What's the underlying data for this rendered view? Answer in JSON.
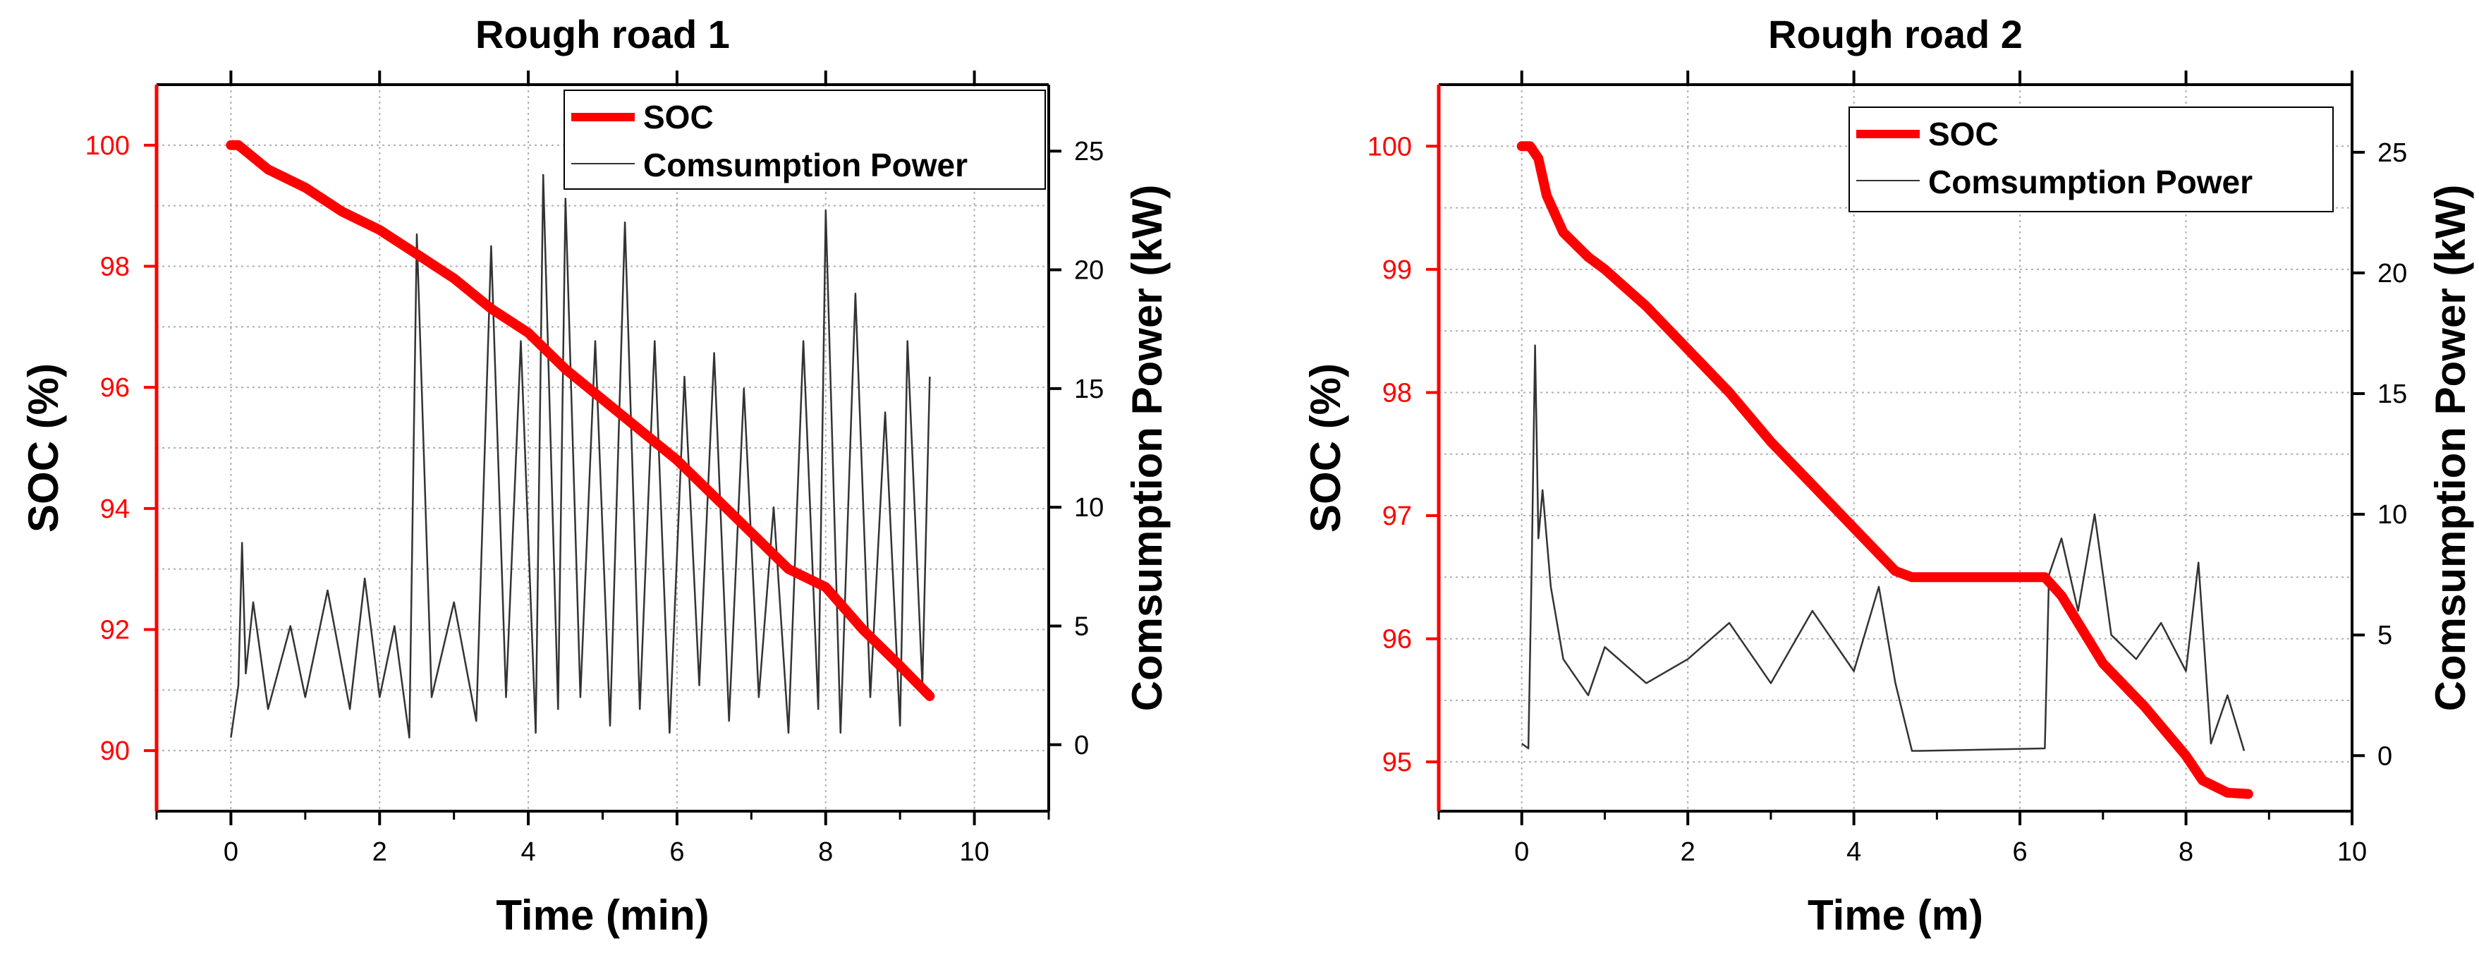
{
  "chart_data": [
    {
      "type": "line",
      "title": "Rough road 1",
      "xlabel": "Time (min)",
      "ylabel": "SOC (%)",
      "y2label": "Comsumption Power (kW)",
      "xlim": [
        -1,
        11
      ],
      "ylim": [
        89,
        101
      ],
      "y2lim": [
        -2.8,
        27.8
      ],
      "xticks": [
        0,
        2,
        4,
        6,
        8,
        10
      ],
      "yticks": [
        90,
        92,
        94,
        96,
        98,
        100
      ],
      "y2ticks": [
        0,
        5,
        10,
        15,
        20,
        25
      ],
      "grid": true,
      "legend": {
        "position": "top-right",
        "entries": [
          "SOC",
          "Comsumption Power"
        ]
      },
      "series": [
        {
          "name": "SOC",
          "axis": "left",
          "color": "#ff0000",
          "x": [
            0,
            0.1,
            0.5,
            1.0,
            1.5,
            2.0,
            2.5,
            3.0,
            3.5,
            4.0,
            4.5,
            5.0,
            5.5,
            6.0,
            6.5,
            7.0,
            7.5,
            8.0,
            8.5,
            9.0,
            9.4
          ],
          "y": [
            100.0,
            100.0,
            99.6,
            99.3,
            98.9,
            98.6,
            98.2,
            97.8,
            97.3,
            96.9,
            96.3,
            95.8,
            95.3,
            94.8,
            94.2,
            93.6,
            93.0,
            92.7,
            92.0,
            91.4,
            90.9
          ]
        },
        {
          "name": "Comsumption Power",
          "axis": "right",
          "color": "#333333",
          "x": [
            0.0,
            0.1,
            0.15,
            0.2,
            0.3,
            0.5,
            0.8,
            1.0,
            1.3,
            1.6,
            1.8,
            2.0,
            2.2,
            2.4,
            2.5,
            2.7,
            3.0,
            3.3,
            3.5,
            3.7,
            3.9,
            4.1,
            4.2,
            4.4,
            4.5,
            4.7,
            4.9,
            5.1,
            5.3,
            5.5,
            5.7,
            5.9,
            6.1,
            6.3,
            6.5,
            6.7,
            6.9,
            7.1,
            7.3,
            7.5,
            7.7,
            7.9,
            8.0,
            8.2,
            8.4,
            8.6,
            8.8,
            9.0,
            9.1,
            9.3,
            9.4
          ],
          "y": [
            0.3,
            2.5,
            8.5,
            3.0,
            6.0,
            1.5,
            5.0,
            2.0,
            6.5,
            1.5,
            7.0,
            2.0,
            5.0,
            0.3,
            21.5,
            2.0,
            6.0,
            1.0,
            21.0,
            2.0,
            17.0,
            0.5,
            24.0,
            1.5,
            23.0,
            2.0,
            17.0,
            0.8,
            22.0,
            1.5,
            17.0,
            0.5,
            15.5,
            2.5,
            16.5,
            1.0,
            15.0,
            2.0,
            10.0,
            0.5,
            17.0,
            1.5,
            22.5,
            0.5,
            19.0,
            2.0,
            14.0,
            0.8,
            17.0,
            2.5,
            15.5
          ]
        }
      ]
    },
    {
      "type": "line",
      "title": "Rough road 2",
      "xlabel": "Time (m)",
      "ylabel": "SOC (%)",
      "y2label": "Comsumption Power (kW)",
      "xlim": [
        -1,
        10
      ],
      "ylim": [
        94.6,
        100.5
      ],
      "y2lim": [
        -2.3,
        27.8
      ],
      "xticks": [
        0,
        2,
        4,
        6,
        8,
        10
      ],
      "yticks": [
        95,
        96,
        97,
        98,
        99,
        100
      ],
      "y2ticks": [
        0,
        5,
        10,
        15,
        20,
        25
      ],
      "grid": true,
      "legend": {
        "position": "top-right",
        "entries": [
          "SOC",
          "Comsumption Power"
        ]
      },
      "series": [
        {
          "name": "SOC",
          "axis": "left",
          "color": "#ff0000",
          "x": [
            0,
            0.1,
            0.2,
            0.3,
            0.5,
            0.8,
            1.0,
            1.5,
            2.0,
            2.5,
            3.0,
            3.5,
            4.0,
            4.5,
            4.7,
            5.0,
            5.5,
            6.0,
            6.3,
            6.5,
            7.0,
            7.5,
            8.0,
            8.2,
            8.5,
            8.75
          ],
          "y": [
            100.0,
            100.0,
            99.9,
            99.6,
            99.3,
            99.1,
            99.0,
            98.7,
            98.35,
            98.0,
            97.6,
            97.25,
            96.9,
            96.55,
            96.5,
            96.5,
            96.5,
            96.5,
            96.5,
            96.35,
            95.8,
            95.45,
            95.05,
            94.85,
            94.75,
            94.74
          ]
        },
        {
          "name": "Comsumption Power",
          "axis": "right",
          "color": "#333333",
          "x": [
            0.0,
            0.08,
            0.12,
            0.16,
            0.2,
            0.25,
            0.35,
            0.5,
            0.8,
            1.0,
            1.5,
            2.0,
            2.5,
            3.0,
            3.5,
            4.0,
            4.3,
            4.5,
            4.7,
            4.8,
            6.3,
            6.35,
            6.5,
            6.7,
            6.9,
            7.1,
            7.4,
            7.7,
            8.0,
            8.15,
            8.3,
            8.5,
            8.7
          ],
          "y": [
            0.5,
            0.3,
            8.0,
            17.0,
            9.0,
            11.0,
            7.0,
            4.0,
            2.5,
            4.5,
            3.0,
            4.0,
            5.5,
            3.0,
            6.0,
            3.5,
            7.0,
            3.0,
            0.2,
            0.2,
            0.3,
            7.5,
            9.0,
            6.0,
            10.0,
            5.0,
            4.0,
            5.5,
            3.5,
            8.0,
            0.5,
            2.5,
            0.2
          ]
        }
      ]
    }
  ]
}
